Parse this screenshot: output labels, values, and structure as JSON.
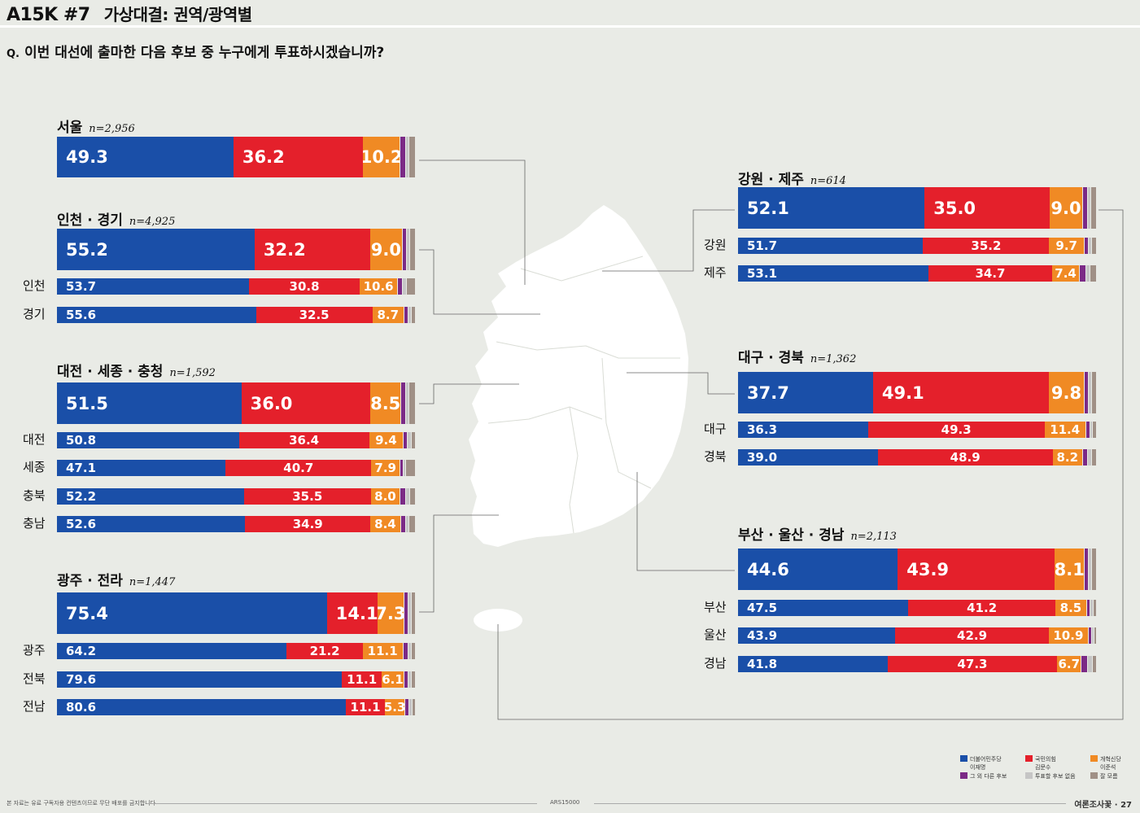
{
  "header": {
    "code": "A15K #7",
    "title": "가상대결: 권역/광역별"
  },
  "question": {
    "mark": "Q.",
    "text": "이번 대선에 출마한 다음 후보 중 누구에게 투표하시겠습니까?"
  },
  "colors": {
    "c0": "#1a4fa8",
    "c1": "#e4202b",
    "c2": "#f08a24",
    "c3": "#7b2a86",
    "c4": "#c5c5c5",
    "c5": "#a09086"
  },
  "legend": [
    {
      "line1": "더불어민주당",
      "line2": "이재명"
    },
    {
      "line1": "국민의힘",
      "line2": "김문수"
    },
    {
      "line1": "개혁신당",
      "line2": "이준석"
    },
    {
      "line1": "그 외 다른 후보",
      "line2": ""
    },
    {
      "line1": "투표할 후보 없음",
      "line2": ""
    },
    {
      "line1": "잘 모름",
      "line2": ""
    }
  ],
  "footer": {
    "note": "본 자료는 유료 구독자용 컨텐츠이므로 무단 배포를 금지합니다",
    "center": "ARS15000",
    "brand": "여론조사꽃",
    "page": "27"
  },
  "chart_data": {
    "type": "stacked-bar",
    "title": "가상대결: 권역/광역별",
    "series": [
      "더불어민주당 이재명",
      "국민의힘 김문수",
      "개혁신당 이준석",
      "그 외 다른 후보",
      "투표할 후보 없음",
      "잘 모름"
    ],
    "regions": [
      {
        "name": "서울",
        "n": "n=2,956",
        "values": [
          49.3,
          36.2,
          10.2,
          1.5,
          1.0,
          1.8
        ],
        "labels": [
          "49.3",
          "36.2",
          "10.2"
        ],
        "rows": []
      },
      {
        "name": "인천 · 경기",
        "n": "n=4,925",
        "values": [
          55.2,
          32.2,
          9.0,
          1.2,
          0.8,
          1.6
        ],
        "labels": [
          "55.2",
          "32.2",
          "9.0"
        ],
        "rows": [
          {
            "name": "인천",
            "values": [
              53.7,
              30.8,
              10.6,
              1.3,
              1.0,
              2.6
            ],
            "labels": [
              "53.7",
              "30.8",
              "10.6"
            ]
          },
          {
            "name": "경기",
            "values": [
              55.6,
              32.5,
              8.7,
              1.2,
              0.8,
              1.2
            ],
            "labels": [
              "55.6",
              "32.5",
              "8.7"
            ]
          }
        ]
      },
      {
        "name": "대전 · 세종 · 충청",
        "n": "n=1,592",
        "values": [
          51.5,
          36.0,
          8.5,
          1.3,
          1.0,
          1.7
        ],
        "labels": [
          "51.5",
          "36.0",
          "8.5"
        ],
        "rows": [
          {
            "name": "대전",
            "values": [
              50.8,
              36.4,
              9.4,
              1.2,
              1.0,
              1.2
            ],
            "labels": [
              "50.8",
              "36.4",
              "9.4"
            ]
          },
          {
            "name": "세종",
            "values": [
              47.1,
              40.7,
              7.9,
              0.8,
              0.8,
              2.7
            ],
            "labels": [
              "47.1",
              "40.7",
              "7.9"
            ]
          },
          {
            "name": "충북",
            "values": [
              52.2,
              35.5,
              8.0,
              1.5,
              1.2,
              1.6
            ],
            "labels": [
              "52.2",
              "35.5",
              "8.0"
            ]
          },
          {
            "name": "충남",
            "values": [
              52.6,
              34.9,
              8.4,
              1.3,
              1.1,
              1.7
            ],
            "labels": [
              "52.6",
              "34.9",
              "8.4"
            ]
          }
        ]
      },
      {
        "name": "광주 · 전라",
        "n": "n=1,447",
        "values": [
          75.4,
          14.1,
          7.3,
          1.2,
          0.8,
          1.2
        ],
        "labels": [
          "75.4",
          "14.1",
          "7.3"
        ],
        "rows": [
          {
            "name": "광주",
            "values": [
              64.2,
              21.2,
              11.1,
              1.5,
              0.8,
              1.2
            ],
            "labels": [
              "64.2",
              "21.2",
              "11.1"
            ]
          },
          {
            "name": "전북",
            "values": [
              79.6,
              11.1,
              6.1,
              1.2,
              0.8,
              1.2
            ],
            "labels": [
              "79.6",
              "11.1",
              "6.1"
            ]
          },
          {
            "name": "전남",
            "values": [
              80.6,
              11.1,
              5.3,
              1.2,
              0.8,
              1.0
            ],
            "labels": [
              "80.6",
              "11.1",
              "5.3"
            ]
          }
        ]
      },
      {
        "name": "강원 · 제주",
        "n": "n=614",
        "values": [
          52.1,
          35.0,
          9.0,
          1.3,
          1.0,
          1.6
        ],
        "labels": [
          "52.1",
          "35.0",
          "9.0"
        ],
        "rows": [
          {
            "name": "강원",
            "values": [
              51.7,
              35.2,
              9.7,
              1.2,
              0.8,
              1.4
            ],
            "labels": [
              "51.7",
              "35.2",
              "9.7"
            ]
          },
          {
            "name": "제주",
            "values": [
              53.1,
              34.7,
              7.4,
              1.8,
              1.3,
              1.7
            ],
            "labels": [
              "53.1",
              "34.7",
              "7.4"
            ]
          }
        ]
      },
      {
        "name": "대구 · 경북",
        "n": "n=1,362",
        "values": [
          37.7,
          49.1,
          9.8,
          1.2,
          0.8,
          1.4
        ],
        "labels": [
          "37.7",
          "49.1",
          "9.8"
        ],
        "rows": [
          {
            "name": "대구",
            "values": [
              36.3,
              49.3,
              11.4,
              1.2,
              0.6,
              1.2
            ],
            "labels": [
              "36.3",
              "49.3",
              "11.4"
            ]
          },
          {
            "name": "경북",
            "values": [
              39.0,
              48.9,
              8.2,
              1.5,
              1.0,
              1.4
            ],
            "labels": [
              "39.0",
              "48.9",
              "8.2"
            ]
          }
        ]
      },
      {
        "name": "부산 · 울산 · 경남",
        "n": "n=2,113",
        "values": [
          44.6,
          43.9,
          8.1,
          1.2,
          0.9,
          1.3
        ],
        "labels": [
          "44.6",
          "43.9",
          "8.1"
        ],
        "rows": [
          {
            "name": "부산",
            "values": [
              47.5,
              41.2,
              8.5,
              1.1,
              0.7,
              1.0
            ],
            "labels": [
              "47.5",
              "41.2",
              "8.5"
            ]
          },
          {
            "name": "울산",
            "values": [
              43.9,
              42.9,
              10.9,
              1.0,
              0.6,
              0.7
            ],
            "labels": [
              "43.9",
              "42.9",
              "10.9"
            ]
          },
          {
            "name": "경남",
            "values": [
              41.8,
              47.3,
              6.7,
              1.8,
              1.2,
              1.2
            ],
            "labels": [
              "41.8",
              "47.3",
              "6.7"
            ]
          }
        ]
      }
    ]
  }
}
